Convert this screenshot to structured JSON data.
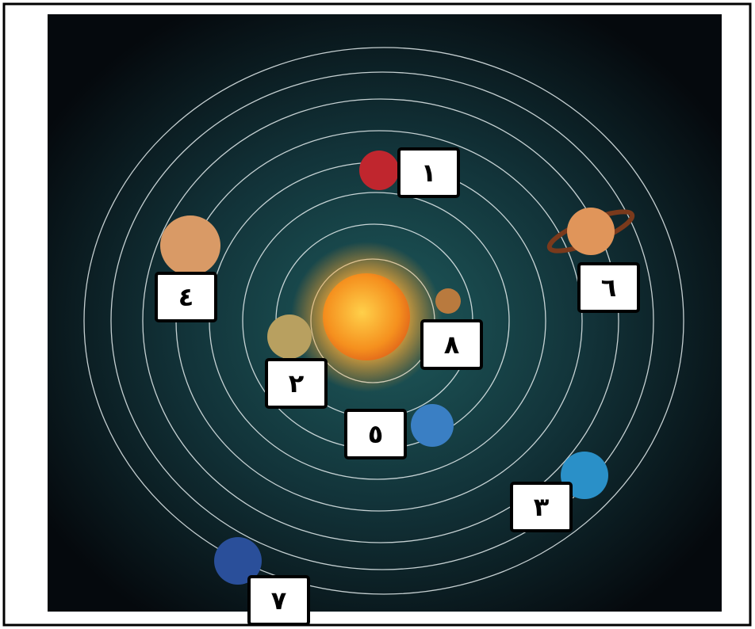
{
  "labels": [
    "١",
    "٦",
    "٤",
    "٨",
    "٢",
    "٥",
    "٣",
    "٧"
  ]
}
